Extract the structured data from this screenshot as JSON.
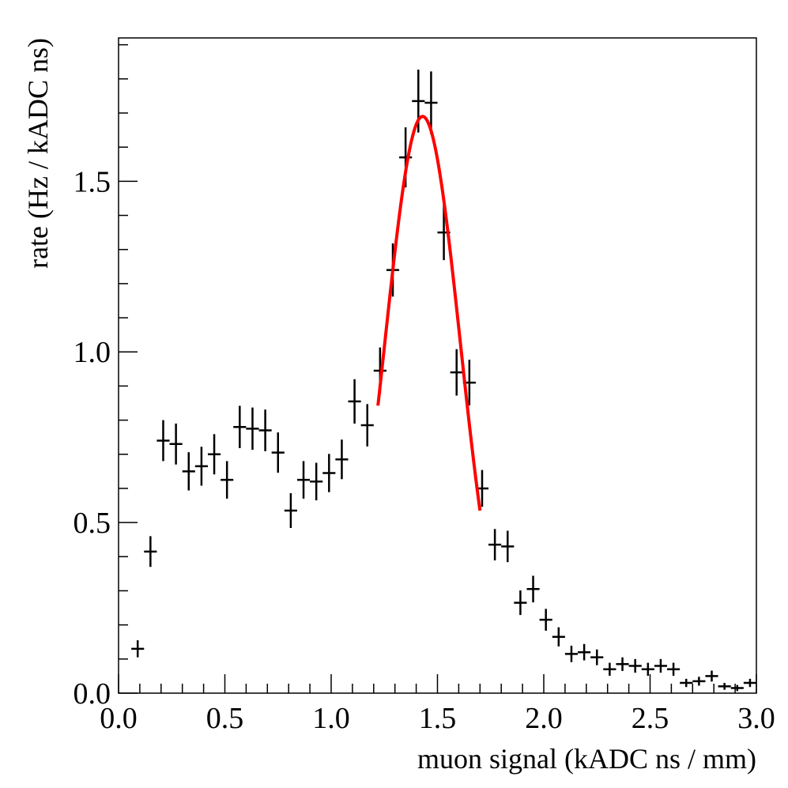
{
  "chart_data": {
    "type": "errorbar",
    "xlabel": "muon signal (kADC ns / mm)",
    "ylabel": "rate (Hz / kADC ns)",
    "xlim": [
      0,
      3.0
    ],
    "ylim": [
      0,
      1.92
    ],
    "xticks": [
      {
        "value": 0,
        "label": "0.0"
      },
      0.5,
      {
        "value": 1,
        "label": "1.0"
      },
      1.5,
      {
        "value": 2,
        "label": "2.0"
      },
      2.5,
      {
        "value": 3,
        "label": "3.0"
      }
    ],
    "yticks": [
      {
        "value": 0,
        "label": "0.0"
      },
      0.5,
      {
        "value": 1,
        "label": "1.0"
      },
      1.5
    ],
    "xminorticks": [
      0.1,
      0.2,
      0.3,
      0.4,
      0.6,
      0.7,
      0.8,
      0.9,
      1.1,
      1.2,
      1.3,
      1.4,
      1.6,
      1.7,
      1.8,
      1.9,
      2.1,
      2.2,
      2.3,
      2.4,
      2.6,
      2.7,
      2.8,
      2.9
    ],
    "yminorticks": [
      0.1,
      0.2,
      0.3,
      0.4,
      0.6,
      0.7,
      0.8,
      0.9,
      1.1,
      1.2,
      1.3,
      1.4,
      1.6,
      1.7,
      1.8,
      1.9
    ],
    "bin_width": 0.06,
    "color": "#000000",
    "x": [
      0.09,
      0.15,
      0.21,
      0.27,
      0.33,
      0.39,
      0.45,
      0.51,
      0.57,
      0.63,
      0.69,
      0.75,
      0.81,
      0.87,
      0.93,
      0.99,
      1.05,
      1.11,
      1.17,
      1.23,
      1.29,
      1.35,
      1.41,
      1.47,
      1.53,
      1.59,
      1.65,
      1.71,
      1.77,
      1.83,
      1.89,
      1.95,
      2.01,
      2.07,
      2.13,
      2.19,
      2.25,
      2.31,
      2.37,
      2.43,
      2.49,
      2.55,
      2.61,
      2.67,
      2.73,
      2.79,
      2.85,
      2.91,
      2.97
    ],
    "values": [
      0.13,
      0.415,
      0.74,
      0.73,
      0.65,
      0.665,
      0.7,
      0.625,
      0.78,
      0.775,
      0.77,
      0.705,
      0.535,
      0.625,
      0.62,
      0.645,
      0.685,
      0.855,
      0.785,
      0.945,
      1.24,
      1.57,
      1.735,
      1.73,
      1.35,
      0.94,
      0.91,
      0.6,
      0.435,
      0.43,
      0.265,
      0.305,
      0.215,
      0.165,
      0.115,
      0.12,
      0.105,
      0.07,
      0.085,
      0.08,
      0.07,
      0.08,
      0.07,
      0.03,
      0.035,
      0.05,
      0.02,
      0.015,
      0.03
    ],
    "errors": [
      0.025,
      0.045,
      0.06,
      0.06,
      0.056,
      0.057,
      0.059,
      0.055,
      0.062,
      0.062,
      0.061,
      0.059,
      0.051,
      0.055,
      0.055,
      0.056,
      0.058,
      0.065,
      0.062,
      0.068,
      0.078,
      0.088,
      0.092,
      0.092,
      0.081,
      0.068,
      0.067,
      0.054,
      0.046,
      0.046,
      0.036,
      0.039,
      0.032,
      0.028,
      0.024,
      0.024,
      0.023,
      0.019,
      0.02,
      0.02,
      0.019,
      0.02,
      0.019,
      0.012,
      0.013,
      0.016,
      0.01,
      0.009,
      0.012
    ],
    "fit": {
      "color": "#ff0000",
      "amplitude": 1.69,
      "mean": 1.43,
      "sigma": 0.178,
      "xrange": [
        1.22,
        1.7
      ]
    }
  }
}
